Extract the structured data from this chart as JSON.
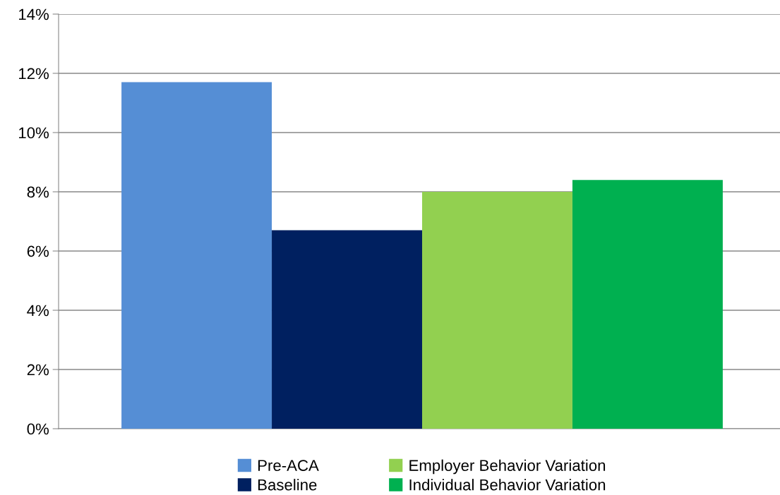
{
  "chart_data": {
    "type": "bar",
    "categories": [
      null
    ],
    "series": [
      {
        "name": "Pre-ACA",
        "color": "#558ed5",
        "values": [
          11.7
        ]
      },
      {
        "name": "Baseline",
        "color": "#002060",
        "values": [
          6.7
        ]
      },
      {
        "name": "Employer Behavior Variation",
        "color": "#92d050",
        "values": [
          8.0
        ]
      },
      {
        "name": "Individual Behavior Variation",
        "color": "#00b050",
        "values": [
          8.4
        ]
      }
    ],
    "ylim": [
      0,
      14
    ],
    "yticks": [
      {
        "value": 0,
        "label": "0%"
      },
      {
        "value": 2,
        "label": "2%"
      },
      {
        "value": 4,
        "label": "4%"
      },
      {
        "value": 6,
        "label": "6%"
      },
      {
        "value": 8,
        "label": "8%"
      },
      {
        "value": 10,
        "label": "10%"
      },
      {
        "value": 12,
        "label": "12%"
      },
      {
        "value": 14,
        "label": "14%"
      }
    ],
    "grid": "y",
    "legend": "bottom"
  }
}
